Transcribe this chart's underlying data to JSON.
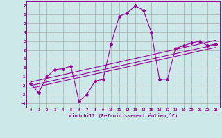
{
  "bg_color": "#cce8e8",
  "grid_color": "#aaaaaa",
  "line_color": "#990099",
  "xlabel": "Windchill (Refroidissement éolien,°C)",
  "xlim": [
    -0.5,
    23.5
  ],
  "ylim": [
    -4.5,
    7.5
  ],
  "yticks": [
    -4,
    -3,
    -2,
    -1,
    0,
    1,
    2,
    3,
    4,
    5,
    6,
    7
  ],
  "xticks": [
    0,
    1,
    2,
    3,
    4,
    5,
    6,
    7,
    8,
    9,
    10,
    11,
    12,
    13,
    14,
    15,
    16,
    17,
    18,
    19,
    20,
    21,
    22,
    23
  ],
  "main_x": [
    0,
    1,
    2,
    3,
    4,
    5,
    6,
    7,
    8,
    9,
    10,
    11,
    12,
    13,
    14,
    15,
    16,
    17,
    18,
    19,
    20,
    21,
    22,
    23
  ],
  "main_y": [
    -1.8,
    -2.8,
    -1.0,
    -0.2,
    -0.1,
    0.2,
    -3.8,
    -3.0,
    -1.5,
    -1.3,
    2.7,
    5.8,
    6.2,
    7.0,
    6.5,
    4.0,
    -1.3,
    -1.3,
    2.2,
    2.5,
    2.8,
    3.0,
    2.5,
    2.7
  ],
  "trend1_x": [
    0,
    23
  ],
  "trend1_y": [
    -2.3,
    2.3
  ],
  "trend2_x": [
    0,
    23
  ],
  "trend2_y": [
    -2.0,
    2.6
  ],
  "trend3_x": [
    0,
    23
  ],
  "trend3_y": [
    -1.6,
    3.1
  ]
}
